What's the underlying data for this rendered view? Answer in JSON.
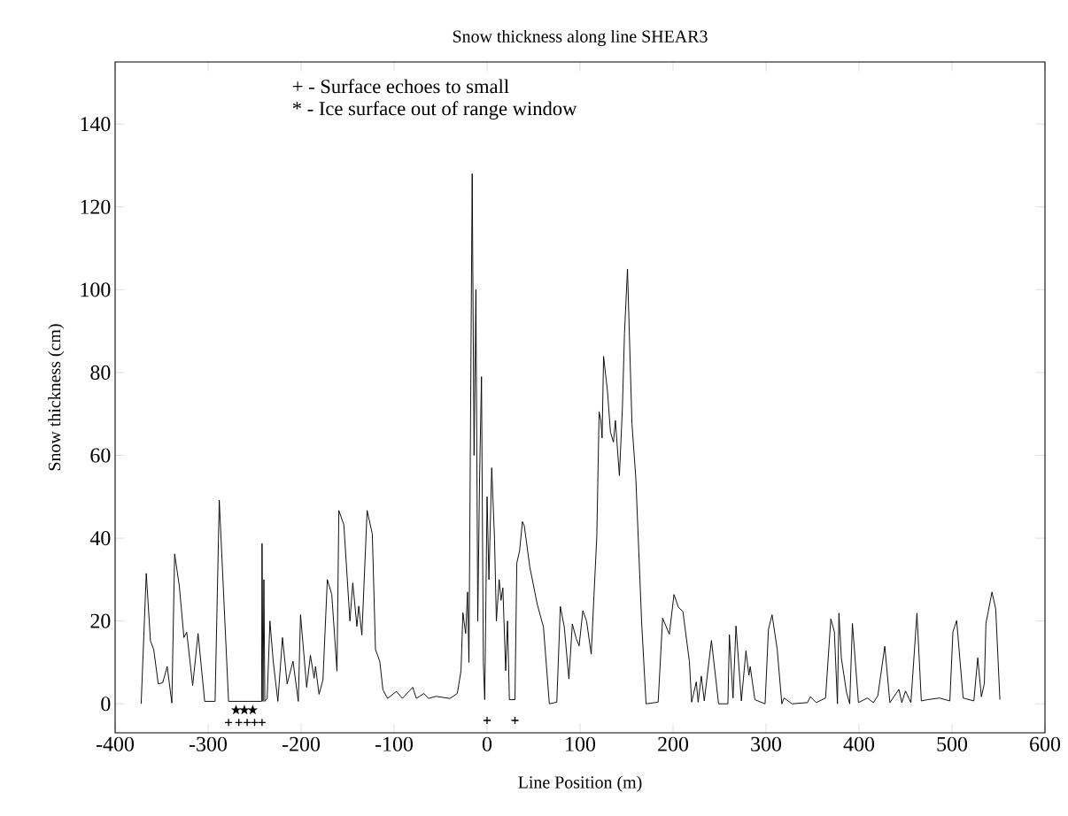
{
  "chart_data": {
    "type": "line",
    "title": "Snow thickness along line SHEAR3",
    "xlabel": "Line Position (m)",
    "ylabel": "Snow thickness (cm)",
    "annotations": [
      "+ - Surface echoes to small",
      "* - Ice surface out of range window"
    ],
    "xlim": [
      -400,
      600
    ],
    "xticks": [
      -400,
      -300,
      -200,
      -100,
      0,
      100,
      200,
      300,
      400,
      500,
      600
    ],
    "ylim": [
      -7,
      155
    ],
    "yticks": [
      0,
      20,
      40,
      60,
      80,
      100,
      120,
      140
    ],
    "grid": false,
    "series": [
      {
        "color": "#000000",
        "marker": "none",
        "x": [
          -372,
          -366.5,
          -362,
          -358.5,
          -353.6,
          -348.8,
          -344,
          -339,
          -336,
          -331,
          -326,
          -323,
          -316.6,
          -310.8,
          -303.7,
          -292.5,
          -288,
          -278,
          -242.5,
          -242,
          -241,
          -240,
          -239,
          -236.5,
          -233.5,
          -230,
          -225,
          -220,
          -215,
          -208.7,
          -203,
          -200.6,
          -194,
          -190,
          -186,
          -184.5,
          -180.7,
          -176.5,
          -171.8,
          -167,
          -161.4,
          -159.4,
          -154,
          -147.5,
          -144.4,
          -140,
          -138,
          -134.6,
          -129,
          -123.4,
          -120,
          -115.4,
          -112,
          -107,
          -97.5,
          -91,
          -80,
          -76,
          -68,
          -63,
          -55,
          -40,
          -32,
          -28,
          -26,
          -23,
          -21,
          -19.5,
          -16,
          -14,
          -12,
          -10,
          -8,
          -6,
          -4,
          -2.5,
          0,
          2,
          5,
          8,
          10,
          13,
          15,
          17,
          20,
          22,
          24,
          30,
          32,
          35,
          38,
          40,
          46,
          54,
          60.6,
          67,
          75,
          78.8,
          83,
          88,
          91.7,
          95.8,
          99,
          103,
          107,
          112,
          115,
          118,
          120.5,
          122.4,
          123.7,
          125.3,
          129.5,
          132.7,
          135.9,
          138,
          142.3,
          145.5,
          147.8,
          151,
          155.8,
          160,
          166.3,
          171,
          184,
          188.8,
          196,
          201,
          205.8,
          210.6,
          217.6,
          220,
          225,
          227,
          230.4,
          233.6,
          241.3,
          249,
          259,
          260.6,
          264.5,
          267.7,
          273.5,
          278.4,
          281.6,
          283,
          288,
          299,
          302.6,
          306.5,
          312,
          317,
          319.4,
          328,
          344.5,
          347.7,
          354,
          364,
          369.7,
          373.5,
          376.8,
          378.4,
          381,
          386.5,
          390,
          392.9,
          399.4,
          409,
          415.5,
          420.3,
          427.7,
          433.2,
          442.9,
          446,
          450,
          455.8,
          462.3,
          467,
          473.5,
          486.5,
          497.7,
          501,
          505,
          512,
          523.5,
          527.7,
          531.6,
          534.8,
          536.5,
          543,
          547,
          551.5
        ],
        "values": [
          0,
          31.5,
          15.2,
          13.1,
          4.8,
          5.1,
          9,
          0.2,
          36.2,
          28.5,
          16,
          17.3,
          4.4,
          17,
          0.6,
          0.6,
          49.2,
          0.6,
          0.6,
          38.7,
          0.6,
          30,
          0.6,
          1.3,
          20,
          10.3,
          0.6,
          16,
          4.8,
          10.3,
          0.6,
          21.5,
          4,
          11.7,
          6.2,
          9,
          2.3,
          5.8,
          30,
          26.4,
          7.9,
          46.7,
          43.2,
          20,
          29.2,
          18.7,
          23.6,
          16.6,
          46.7,
          41,
          13.1,
          10.3,
          3.4,
          1.3,
          3,
          1.3,
          4,
          1.3,
          2.5,
          1.3,
          1.8,
          1.3,
          2.5,
          8,
          22,
          17,
          27,
          10,
          128,
          60,
          100,
          20,
          55,
          79,
          10,
          1,
          50,
          30,
          57,
          40,
          20,
          30,
          25,
          28,
          8,
          20,
          1,
          1,
          34,
          37,
          44,
          43,
          33,
          24,
          18.6,
          0,
          0.4,
          23.5,
          18.6,
          6,
          19.3,
          15.8,
          14,
          22.5,
          20,
          12,
          26.3,
          40.4,
          70.5,
          68.4,
          64.2,
          83.9,
          75.4,
          65.6,
          63.2,
          68.4,
          55.1,
          71.2,
          89.5,
          105,
          67.7,
          54.4,
          19.3,
          0,
          0.4,
          20.7,
          16.8,
          26.4,
          23.3,
          22.3,
          10.2,
          0.4,
          5.3,
          0.4,
          6.7,
          0.7,
          15.3,
          0,
          0,
          16.7,
          1.4,
          18.8,
          0.7,
          12.8,
          6.9,
          9,
          1,
          0,
          18,
          21.5,
          13.2,
          0,
          1.4,
          0,
          0.3,
          1.7,
          0.3,
          1.4,
          20.5,
          17.4,
          0,
          21.9,
          11.1,
          2.8,
          0,
          19.4,
          0.3,
          1.4,
          0.3,
          2,
          13.9,
          0.3,
          3.5,
          0.3,
          3.1,
          0.3,
          21.9,
          0.7,
          1,
          1.4,
          0.7,
          17.4,
          20.1,
          1.4,
          0.7,
          11.1,
          1.7,
          4.9,
          19.4,
          27,
          22.9,
          1
        ]
      },
      {
        "type": "scatter",
        "color": "#000000",
        "marker": "cross",
        "x": [
          -278,
          -267,
          -258,
          -250,
          -242,
          0,
          30
        ],
        "values": [
          -4.5,
          -4.5,
          -4.5,
          -4.5,
          -4.5,
          -4,
          -4
        ]
      },
      {
        "type": "scatter",
        "color": "#000000",
        "marker": "star",
        "x": [
          -270,
          -261,
          -252
        ],
        "values": [
          -1.5,
          -1.5,
          -1.5
        ]
      }
    ]
  }
}
